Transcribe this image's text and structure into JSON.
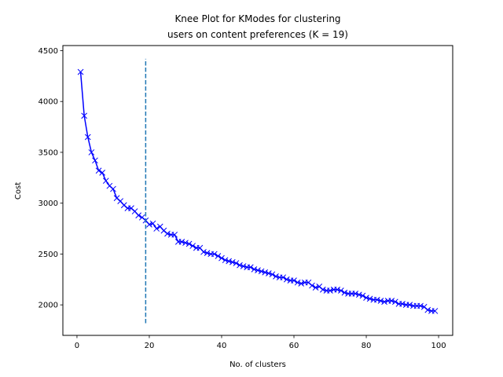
{
  "chart_data": {
    "type": "line",
    "title_lines": [
      "Knee Plot for KModes for clustering",
      "users on content preferences (K = 19)"
    ],
    "xlabel": "No. of clusters",
    "ylabel": "Cost",
    "xlim": [
      -3.9,
      103.9
    ],
    "ylim": [
      1700,
      4550
    ],
    "xticks": [
      0,
      20,
      40,
      60,
      80,
      100
    ],
    "yticks": [
      2000,
      2500,
      3000,
      3500,
      4000,
      4500
    ],
    "grid": false,
    "legend": "none",
    "series": [
      {
        "color": "#0000ff",
        "marker": "x",
        "x": [
          1,
          2,
          3,
          4,
          5,
          6,
          7,
          8,
          9,
          10,
          11,
          12,
          13,
          14,
          15,
          16,
          17,
          18,
          19,
          20,
          21,
          22,
          23,
          24,
          25,
          26,
          27,
          28,
          29,
          30,
          31,
          32,
          33,
          34,
          35,
          36,
          37,
          38,
          39,
          40,
          41,
          42,
          43,
          44,
          45,
          46,
          47,
          48,
          49,
          50,
          51,
          52,
          53,
          54,
          55,
          56,
          57,
          58,
          59,
          60,
          61,
          62,
          63,
          64,
          65,
          66,
          67,
          68,
          69,
          70,
          71,
          72,
          73,
          74,
          75,
          76,
          77,
          78,
          79,
          80,
          81,
          82,
          83,
          84,
          85,
          86,
          87,
          88,
          89,
          90,
          91,
          92,
          93,
          94,
          95,
          96,
          97,
          98,
          99
        ],
        "y": [
          4290,
          3860,
          3650,
          3500,
          3420,
          3320,
          3300,
          3220,
          3170,
          3140,
          3050,
          3020,
          2980,
          2950,
          2950,
          2920,
          2880,
          2860,
          2830,
          2790,
          2800,
          2750,
          2770,
          2730,
          2700,
          2690,
          2690,
          2620,
          2620,
          2610,
          2600,
          2580,
          2560,
          2560,
          2520,
          2510,
          2500,
          2500,
          2480,
          2460,
          2440,
          2430,
          2420,
          2410,
          2390,
          2380,
          2370,
          2370,
          2350,
          2340,
          2330,
          2320,
          2310,
          2300,
          2280,
          2270,
          2270,
          2250,
          2240,
          2240,
          2220,
          2210,
          2220,
          2220,
          2190,
          2170,
          2180,
          2150,
          2140,
          2140,
          2150,
          2150,
          2140,
          2120,
          2110,
          2110,
          2110,
          2100,
          2090,
          2070,
          2060,
          2050,
          2050,
          2040,
          2030,
          2040,
          2040,
          2030,
          2010,
          2010,
          2000,
          2000,
          1990,
          1990,
          1990,
          1980,
          1950,
          1940,
          1940
        ]
      }
    ],
    "vline": {
      "x": 19,
      "ymin": 1820,
      "ymax": 4420,
      "color": "#1f77b4",
      "style": "dashed"
    }
  }
}
